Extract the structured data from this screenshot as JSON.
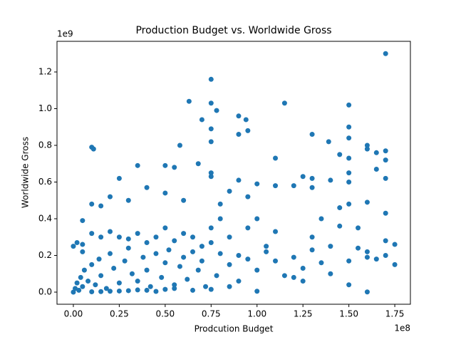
{
  "chart_data": {
    "type": "scatter",
    "title": "Production Budget vs. Worldwide Gross",
    "x_label": "Prodcution Budget",
    "y_label": "Worldwide Gross",
    "x_offset_label": "1e8",
    "y_offset_label": "1e9",
    "color": "#1f77b4",
    "grid": false,
    "xlim": [
      -8900000,
      183500000
    ],
    "ylim": [
      -66000000,
      1367000000
    ],
    "xticks": [
      {
        "value": 0,
        "label": "0.00"
      },
      {
        "value": 25000000,
        "label": "0.25"
      },
      {
        "value": 50000000,
        "label": "0.50"
      },
      {
        "value": 75000000,
        "label": "0.75"
      },
      {
        "value": 100000000,
        "label": "1.00"
      },
      {
        "value": 125000000,
        "label": "1.25"
      },
      {
        "value": 150000000,
        "label": "1.50"
      },
      {
        "value": 175000000,
        "label": "1.75"
      }
    ],
    "yticks": [
      {
        "value": 0,
        "label": "0.0"
      },
      {
        "value": 200000000,
        "label": "0.2"
      },
      {
        "value": 400000000,
        "label": "0.4"
      },
      {
        "value": 600000000,
        "label": "0.6"
      },
      {
        "value": 800000000,
        "label": "0.8"
      },
      {
        "value": 1000000000,
        "label": "1.0"
      },
      {
        "value": 1200000000,
        "label": "1.2"
      }
    ],
    "x": [
      170000000.0,
      75000000.0,
      75000000.0,
      63000000.0,
      115000000.0,
      150000000.0,
      78000000.0,
      70000000.0,
      90000000.0,
      94000000.0,
      75000000.0,
      95000000.0,
      90000000.0,
      150000000.0,
      130000000.0,
      150000000.0,
      139000000.0,
      75000000.0,
      58000000.0,
      160000000.0,
      160000000.0,
      170000000.0,
      165000000.0,
      10000000.0,
      11000000.0,
      110000000.0,
      145000000.0,
      150000000.0,
      68000000.0,
      50000000.0,
      55000000.0,
      35000000.0,
      170000000.0,
      165000000.0,
      170000000.0,
      25000000.0,
      125000000.0,
      130000000.0,
      140000000.0,
      150000000.0,
      150000000.0,
      75000000.0,
      75000000.0,
      90000000.0,
      80000000.0,
      40000000.0,
      50000000.0,
      60000000.0,
      20000000.0,
      30000000.0,
      120000000.0,
      130000000.0,
      160000000.0,
      150000000.0,
      100000000.0,
      110000000.0,
      85000000.0,
      95000000.0,
      5000000.0,
      10000000.0,
      15000000.0,
      5000000.0,
      2000000.0,
      0,
      175000000.0,
      175000000.0,
      170000000.0,
      160000000.0,
      150000000.0,
      140000000.0,
      160000000.0,
      130000000.0,
      125000000.0,
      120000000.0,
      110000000.0,
      105000000.0,
      100000000.0,
      95000000.0,
      90000000.0,
      85000000.0,
      80000000.0,
      75000000.0,
      70000000.0,
      65000000.0,
      60000000.0,
      55000000.0,
      50000000.0,
      45000000.0,
      40000000.0,
      35000000.0,
      30000000.0,
      25000000.0,
      20000000.0,
      15000000.0,
      10000000.0,
      5000000.0,
      170000000.0,
      155000000.0,
      145000000.0,
      135000000.0,
      0,
      1000000.0,
      2000000.0,
      3000000.0,
      4000000.0,
      5000000.0,
      6000000.0,
      8000000.0,
      10000000.0,
      12000000.0,
      14000000.0,
      15000000.0,
      18000000.0,
      20000000.0,
      22000000.0,
      25000000.0,
      28000000.0,
      30000000.0,
      32000000.0,
      35000000.0,
      38000000.0,
      40000000.0,
      42000000.0,
      45000000.0,
      48000000.0,
      50000000.0,
      52000000.0,
      55000000.0,
      58000000.0,
      60000000.0,
      62000000.0,
      65000000.0,
      68000000.0,
      70000000.0,
      72000000.0,
      75000000.0,
      78000000.0,
      80000000.0,
      85000000.0,
      90000000.0,
      95000000.0,
      100000000.0,
      105000000.0,
      110000000.0,
      115000000.0,
      120000000.0,
      125000000.0,
      130000000.0,
      135000000.0,
      140000000.0,
      10000000.0,
      20000000.0,
      30000000.0,
      40000000.0,
      50000000.0,
      15000000.0,
      25000000.0,
      35000000.0,
      45000000.0,
      55000000.0,
      65000000.0,
      75000000.0,
      85000000.0,
      100000000.0,
      150000000.0,
      160000000.0,
      170000000.0,
      165000000.0,
      155000000.0,
      145000000.0
    ],
    "values": [
      1300000000.0,
      1160000000.0,
      1030000000.0,
      1040000000.0,
      1030000000.0,
      1020000000.0,
      990000000.0,
      940000000.0,
      960000000.0,
      940000000.0,
      890000000.0,
      880000000.0,
      860000000.0,
      900000000.0,
      860000000.0,
      840000000.0,
      820000000.0,
      820000000.0,
      800000000.0,
      800000000.0,
      780000000.0,
      770000000.0,
      760000000.0,
      790000000.0,
      780000000.0,
      730000000.0,
      750000000.0,
      730000000.0,
      700000000.0,
      690000000.0,
      680000000.0,
      690000000.0,
      720000000.0,
      670000000.0,
      620000000.0,
      620000000.0,
      630000000.0,
      620000000.0,
      610000000.0,
      650000000.0,
      600000000.0,
      650000000.0,
      630000000.0,
      610000000.0,
      480000000.0,
      570000000.0,
      540000000.0,
      500000000.0,
      520000000.0,
      500000000.0,
      580000000.0,
      570000000.0,
      490000000.0,
      480000000.0,
      590000000.0,
      580000000.0,
      550000000.0,
      520000000.0,
      390000000.0,
      480000000.0,
      470000000.0,
      260000000.0,
      270000000.0,
      250000000.0,
      260000000.0,
      150000000.0,
      200000000.0,
      220000000.0,
      40000000.0,
      250000000.0,
      1000000.0,
      300000000.0,
      60000000.0,
      80000000.0,
      330000000.0,
      250000000.0,
      400000000.0,
      350000000.0,
      200000000.0,
      300000000.0,
      400000000.0,
      350000000.0,
      250000000.0,
      300000000.0,
      320000000.0,
      280000000.0,
      350000000.0,
      300000000.0,
      270000000.0,
      320000000.0,
      290000000.0,
      300000000.0,
      330000000.0,
      300000000.0,
      320000000.0,
      220000000.0,
      430000000.0,
      350000000.0,
      460000000.0,
      400000000.0,
      0,
      20000000.0,
      50000000.0,
      10000000.0,
      80000000.0,
      30000000.0,
      120000000.0,
      60000000.0,
      150000000.0,
      40000000.0,
      180000000.0,
      90000000.0,
      20000000.0,
      210000000.0,
      130000000.0,
      50000000.0,
      170000000.0,
      240000000.0,
      100000000.0,
      60000000.0,
      190000000.0,
      120000000.0,
      30000000.0,
      210000000.0,
      80000000.0,
      160000000.0,
      230000000.0,
      40000000.0,
      140000000.0,
      190000000.0,
      70000000.0,
      220000000.0,
      120000000.0,
      170000000.0,
      30000000.0,
      270000000.0,
      90000000.0,
      210000000.0,
      150000000.0,
      60000000.0,
      180000000.0,
      120000000.0,
      220000000.0,
      170000000.0,
      90000000.0,
      190000000.0,
      130000000.0,
      230000000.0,
      160000000.0,
      100000000.0,
      2000000.0,
      5000000.0,
      8000000.0,
      10000000.0,
      15000000.0,
      3000000.0,
      6000000.0,
      12000000.0,
      4000000.0,
      20000000.0,
      10000000.0,
      15000000.0,
      30000000.0,
      5000000.0,
      170000000.0,
      190000000.0,
      280000000.0,
      180000000.0,
      240000000.0,
      360000000.0
    ]
  }
}
